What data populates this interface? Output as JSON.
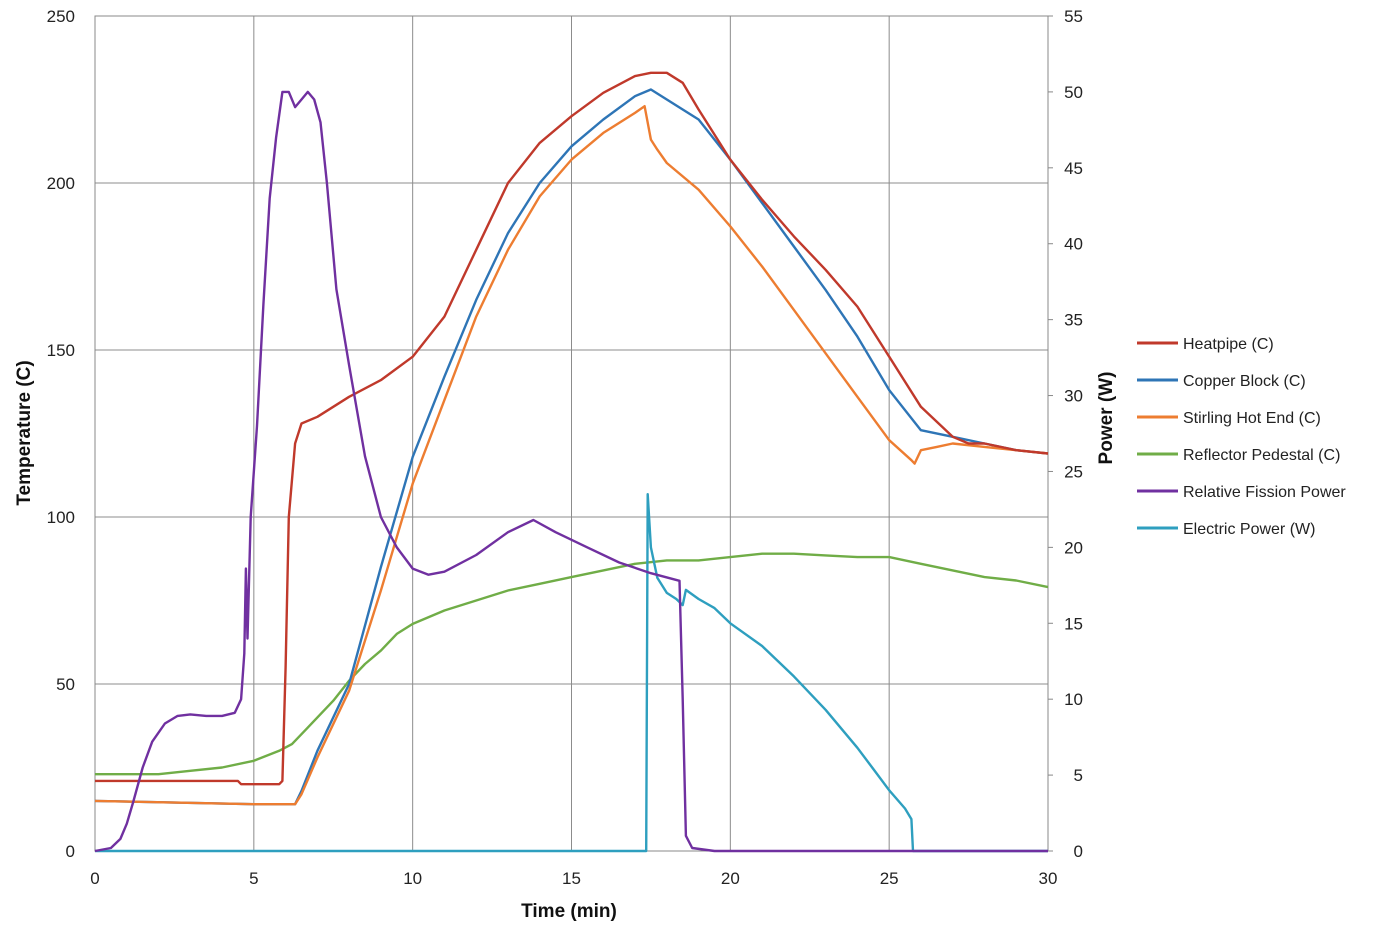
{
  "chart_data": {
    "type": "line",
    "title": "",
    "xlabel": "Time (min)",
    "ylabel": "Temperature (C)",
    "y2label": "Power (W)",
    "xlim": [
      0,
      30
    ],
    "ylim": [
      0,
      250
    ],
    "y2lim": [
      0,
      55
    ],
    "x_ticks": [
      "0",
      "5",
      "10",
      "15",
      "20",
      "25",
      "30"
    ],
    "y_ticks": [
      "0",
      "50",
      "100",
      "150",
      "200",
      "250"
    ],
    "y2_ticks": [
      "0",
      "5",
      "10",
      "15",
      "20",
      "25",
      "30",
      "35",
      "40",
      "45",
      "50",
      "55"
    ],
    "grid": true,
    "legend_position": "right",
    "series": [
      {
        "name": "Heatpipe (C)",
        "axis": "left",
        "color": "#c0392b",
        "points": [
          [
            0,
            21
          ],
          [
            4.5,
            21
          ],
          [
            4.6,
            20
          ],
          [
            5.8,
            20
          ],
          [
            5.9,
            21
          ],
          [
            6,
            55
          ],
          [
            6.1,
            100
          ],
          [
            6.3,
            122
          ],
          [
            6.5,
            128
          ],
          [
            7,
            130
          ],
          [
            8,
            136
          ],
          [
            9,
            141
          ],
          [
            10,
            148
          ],
          [
            11,
            160
          ],
          [
            12,
            180
          ],
          [
            13,
            200
          ],
          [
            14,
            212
          ],
          [
            15,
            220
          ],
          [
            16,
            227
          ],
          [
            17,
            232
          ],
          [
            17.5,
            233
          ],
          [
            18,
            233
          ],
          [
            18.5,
            230
          ],
          [
            19,
            222
          ],
          [
            20,
            207
          ],
          [
            21,
            195
          ],
          [
            22,
            184
          ],
          [
            23,
            174
          ],
          [
            24,
            163
          ],
          [
            25,
            148
          ],
          [
            26,
            133
          ],
          [
            27,
            124
          ],
          [
            27.5,
            122
          ],
          [
            28,
            122
          ],
          [
            29,
            120
          ],
          [
            30,
            119
          ]
        ]
      },
      {
        "name": "Copper Block (C)",
        "axis": "left",
        "color": "#2e75b6",
        "points": [
          [
            0,
            15
          ],
          [
            5,
            14
          ],
          [
            6.3,
            14
          ],
          [
            6.5,
            18
          ],
          [
            7,
            30
          ],
          [
            8,
            50
          ],
          [
            9,
            85
          ],
          [
            10,
            118
          ],
          [
            11,
            142
          ],
          [
            12,
            165
          ],
          [
            13,
            185
          ],
          [
            14,
            200
          ],
          [
            15,
            211
          ],
          [
            16,
            219
          ],
          [
            17,
            226
          ],
          [
            17.5,
            228
          ],
          [
            18,
            225
          ],
          [
            19,
            219
          ],
          [
            20,
            207
          ],
          [
            21,
            194
          ],
          [
            22,
            181
          ],
          [
            23,
            168
          ],
          [
            24,
            154
          ],
          [
            25,
            138
          ],
          [
            26,
            126
          ],
          [
            27,
            124
          ],
          [
            28,
            122
          ],
          [
            29,
            120
          ],
          [
            30,
            119
          ]
        ]
      },
      {
        "name": "Stirling Hot End (C)",
        "axis": "left",
        "color": "#ed7d31",
        "points": [
          [
            0,
            15
          ],
          [
            5,
            14
          ],
          [
            6.3,
            14
          ],
          [
            6.5,
            17
          ],
          [
            7,
            28
          ],
          [
            8,
            48
          ],
          [
            9,
            78
          ],
          [
            10,
            110
          ],
          [
            11,
            135
          ],
          [
            12,
            160
          ],
          [
            13,
            180
          ],
          [
            14,
            196
          ],
          [
            15,
            207
          ],
          [
            16,
            215
          ],
          [
            17,
            221
          ],
          [
            17.3,
            223
          ],
          [
            17.5,
            213
          ],
          [
            17.7,
            210
          ],
          [
            18,
            206
          ],
          [
            19,
            198
          ],
          [
            20,
            187
          ],
          [
            21,
            175
          ],
          [
            22,
            162
          ],
          [
            23,
            149
          ],
          [
            24,
            136
          ],
          [
            25,
            123
          ],
          [
            25.7,
            117
          ],
          [
            25.8,
            116
          ],
          [
            26,
            120
          ],
          [
            26.5,
            121
          ],
          [
            27,
            122
          ],
          [
            28,
            121
          ],
          [
            29,
            120
          ],
          [
            30,
            119
          ]
        ]
      },
      {
        "name": "Reflector Pedestal (C)",
        "axis": "left",
        "color": "#70ad47",
        "points": [
          [
            0,
            23
          ],
          [
            2,
            23
          ],
          [
            3,
            24
          ],
          [
            4,
            25
          ],
          [
            5,
            27
          ],
          [
            5.8,
            30
          ],
          [
            6.2,
            32
          ],
          [
            6.6,
            36
          ],
          [
            7,
            40
          ],
          [
            7.5,
            45
          ],
          [
            8,
            51
          ],
          [
            8.5,
            56
          ],
          [
            9,
            60
          ],
          [
            9.5,
            65
          ],
          [
            10,
            68
          ],
          [
            11,
            72
          ],
          [
            12,
            75
          ],
          [
            13,
            78
          ],
          [
            14,
            80
          ],
          [
            15,
            82
          ],
          [
            16,
            84
          ],
          [
            17,
            86
          ],
          [
            18,
            87
          ],
          [
            19,
            87
          ],
          [
            20,
            88
          ],
          [
            21,
            89
          ],
          [
            22,
            89
          ],
          [
            23,
            88.5
          ],
          [
            24,
            88
          ],
          [
            25,
            88
          ],
          [
            26,
            86
          ],
          [
            27,
            84
          ],
          [
            28,
            82
          ],
          [
            29,
            81
          ],
          [
            30,
            79
          ]
        ]
      },
      {
        "name": "Relative Fission Power",
        "axis": "right",
        "color": "#7030a0",
        "points": [
          [
            0,
            0
          ],
          [
            0.5,
            0.2
          ],
          [
            0.8,
            0.8
          ],
          [
            1,
            1.8
          ],
          [
            1.2,
            3.2
          ],
          [
            1.5,
            5.5
          ],
          [
            1.8,
            7.2
          ],
          [
            2.2,
            8.4
          ],
          [
            2.6,
            8.9
          ],
          [
            3,
            9
          ],
          [
            3.5,
            8.9
          ],
          [
            4,
            8.9
          ],
          [
            4.4,
            9.1
          ],
          [
            4.6,
            10
          ],
          [
            4.7,
            13
          ],
          [
            4.75,
            18.6
          ],
          [
            4.8,
            14
          ],
          [
            4.9,
            22
          ],
          [
            5.1,
            28
          ],
          [
            5.3,
            36
          ],
          [
            5.5,
            43
          ],
          [
            5.7,
            47
          ],
          [
            5.9,
            50
          ],
          [
            6.1,
            50
          ],
          [
            6.3,
            49
          ],
          [
            6.5,
            49.5
          ],
          [
            6.7,
            50
          ],
          [
            6.9,
            49.5
          ],
          [
            7.1,
            48
          ],
          [
            7.3,
            44
          ],
          [
            7.6,
            37
          ],
          [
            8,
            32
          ],
          [
            8.5,
            26
          ],
          [
            9,
            22
          ],
          [
            9.5,
            20
          ],
          [
            10,
            18.6
          ],
          [
            10.5,
            18.2
          ],
          [
            11,
            18.4
          ],
          [
            12,
            19.5
          ],
          [
            13,
            21
          ],
          [
            13.8,
            21.8
          ],
          [
            14.5,
            21
          ],
          [
            15.5,
            20
          ],
          [
            16.5,
            19
          ],
          [
            17.5,
            18.3
          ],
          [
            18.4,
            17.8
          ],
          [
            18.5,
            10
          ],
          [
            18.6,
            1
          ],
          [
            18.8,
            0.2
          ],
          [
            19.5,
            0
          ],
          [
            30,
            0
          ]
        ]
      },
      {
        "name": "Electric Power (W)",
        "axis": "right",
        "color": "#2e9fbf",
        "points": [
          [
            0,
            0
          ],
          [
            17.35,
            0
          ],
          [
            17.4,
            23.5
          ],
          [
            17.5,
            20
          ],
          [
            17.7,
            18
          ],
          [
            18,
            17
          ],
          [
            18.3,
            16.6
          ],
          [
            18.5,
            16.2
          ],
          [
            18.6,
            17.2
          ],
          [
            19,
            16.6
          ],
          [
            19.5,
            16
          ],
          [
            20,
            15
          ],
          [
            21,
            13.5
          ],
          [
            22,
            11.5
          ],
          [
            23,
            9.3
          ],
          [
            24,
            6.8
          ],
          [
            24.5,
            5.4
          ],
          [
            25,
            4
          ],
          [
            25.5,
            2.8
          ],
          [
            25.7,
            2.1
          ],
          [
            25.75,
            0
          ],
          [
            30,
            0
          ]
        ]
      }
    ]
  }
}
